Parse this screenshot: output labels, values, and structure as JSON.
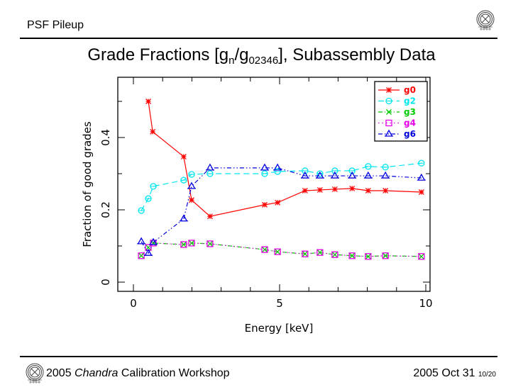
{
  "header": {
    "section_title": "PSF Pileup",
    "logo": "chandra-logo-icon"
  },
  "slide": {
    "title_main": "Grade Fractions [g",
    "title_sub1": "n",
    "title_mid": "/g",
    "title_sub2": "02346",
    "title_end": "], Subassembly Data"
  },
  "footer": {
    "logo": "chandra-logo-icon",
    "left_pre": "2005 ",
    "left_italic": "Chandra",
    "left_post": " Calibration Workshop",
    "date": "2005 Oct 31",
    "page": "10/20"
  },
  "chart_data": {
    "type": "line",
    "title": "",
    "xlabel": "Energy [keV]",
    "ylabel": "Fraction of good grades",
    "xlim": [
      -0.5,
      10.2
    ],
    "ylim": [
      -0.02,
      0.56
    ],
    "xticks": [
      0,
      5,
      10
    ],
    "xtick_labels": [
      "0",
      "5",
      "10"
    ],
    "yticks": [
      0,
      0.2,
      0.4
    ],
    "ytick_labels": [
      "0",
      "0.2",
      "0.4"
    ],
    "legend_position": "top-right",
    "series": [
      {
        "name": "g0",
        "color": "#ff0000",
        "marker": "star",
        "dash": "solid",
        "x": [
          0.51,
          0.66,
          1.72,
          1.99,
          2.62,
          4.49,
          4.93,
          5.87,
          6.38,
          6.89,
          7.48,
          8.03,
          8.62,
          9.85
        ],
        "y": [
          0.5,
          0.416,
          0.347,
          0.227,
          0.182,
          0.214,
          0.22,
          0.253,
          0.255,
          0.257,
          0.259,
          0.253,
          0.253,
          0.249
        ]
      },
      {
        "name": "g2",
        "color": "#00e5ee",
        "marker": "circle",
        "dash": "dashed",
        "x": [
          0.27,
          0.51,
          0.68,
          1.72,
          1.99,
          2.62,
          4.49,
          4.93,
          5.87,
          6.38,
          6.89,
          7.48,
          8.03,
          8.62,
          9.85
        ],
        "y": [
          0.198,
          0.231,
          0.265,
          0.282,
          0.298,
          0.3,
          0.3,
          0.306,
          0.308,
          0.3,
          0.308,
          0.308,
          0.32,
          0.318,
          0.329
        ]
      },
      {
        "name": "g3",
        "color": "#00cc00",
        "marker": "x",
        "dash": "dashdot",
        "x": [
          0.27,
          0.51,
          0.68,
          1.72,
          1.99,
          2.62,
          4.49,
          4.93,
          5.87,
          6.38,
          6.89,
          7.48,
          8.03,
          8.62,
          9.85
        ],
        "y": [
          0.073,
          0.096,
          0.108,
          0.104,
          0.108,
          0.106,
          0.09,
          0.084,
          0.078,
          0.082,
          0.076,
          0.073,
          0.071,
          0.073,
          0.071
        ]
      },
      {
        "name": "g4",
        "color": "#e600e6",
        "marker": "square",
        "dash": "dotted",
        "x": [
          0.27,
          0.51,
          0.68,
          1.72,
          1.99,
          2.62,
          4.49,
          4.93,
          5.87,
          6.38,
          6.89,
          7.48,
          8.03,
          8.62,
          9.85
        ],
        "y": [
          0.073,
          0.096,
          0.108,
          0.104,
          0.108,
          0.106,
          0.09,
          0.084,
          0.078,
          0.082,
          0.076,
          0.073,
          0.071,
          0.073,
          0.071
        ]
      },
      {
        "name": "g6",
        "color": "#0000dd",
        "marker": "triangle",
        "dash": "dashdotdot",
        "x": [
          0.27,
          0.51,
          0.68,
          1.72,
          1.99,
          2.62,
          4.49,
          4.93,
          5.87,
          6.38,
          6.89,
          7.48,
          8.03,
          8.62,
          9.85
        ],
        "y": [
          0.112,
          0.08,
          0.11,
          0.175,
          0.265,
          0.316,
          0.316,
          0.316,
          0.294,
          0.294,
          0.294,
          0.294,
          0.294,
          0.294,
          0.288
        ]
      }
    ]
  }
}
